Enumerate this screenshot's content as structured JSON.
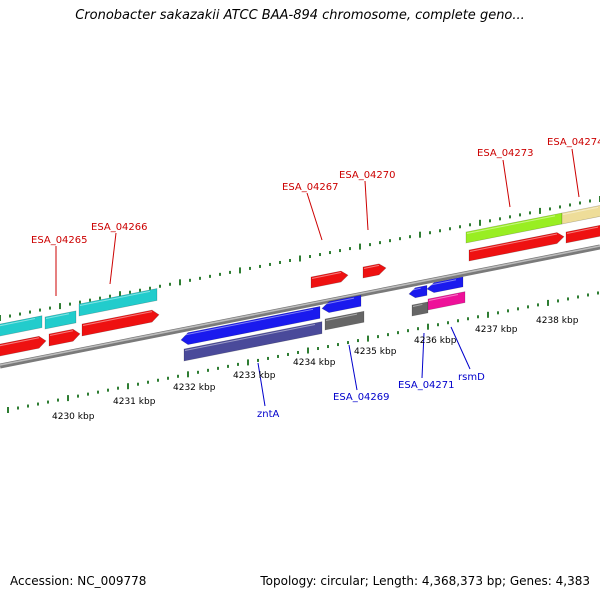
{
  "title": "Cronobacter sakazakii ATCC BAA-894 chromosome, complete geno...",
  "footer": {
    "accession": "Accession: NC_009778",
    "topology": "Topology: circular; Length: 4,368,373 bp; Genes: 4,383"
  },
  "colors": {
    "backbone": "#8c8c8c",
    "tick": "#2e7d32",
    "label_red": "#cc0000",
    "label_blue": "#0000cc",
    "red": "#ee1111",
    "cyan": "#22cccc",
    "blue": "#1a1aee",
    "slate": "#4a4a9a",
    "gray": "#666666",
    "green": "#99ee22",
    "khaki": "#eedd99",
    "magenta": "#ee1199"
  },
  "kbp_labels": [
    "4230 kbp",
    "4231 kbp",
    "4232 kbp",
    "4233 kbp",
    "4234 kbp",
    "4235 kbp",
    "4236 kbp",
    "4237 kbp",
    "4238 kbp"
  ],
  "gene_labels": [
    {
      "text": "ESA_04265",
      "strand": "top"
    },
    {
      "text": "ESA_04266",
      "strand": "top"
    },
    {
      "text": "ESA_04267",
      "strand": "top"
    },
    {
      "text": "ESA_04270",
      "strand": "top"
    },
    {
      "text": "ESA_04273",
      "strand": "top"
    },
    {
      "text": "ESA_04274",
      "strand": "top"
    },
    {
      "text": "zntA",
      "strand": "bottom"
    },
    {
      "text": "ESA_04269",
      "strand": "bottom"
    },
    {
      "text": "ESA_04271",
      "strand": "bottom"
    },
    {
      "text": "rsmD",
      "strand": "bottom"
    }
  ]
}
